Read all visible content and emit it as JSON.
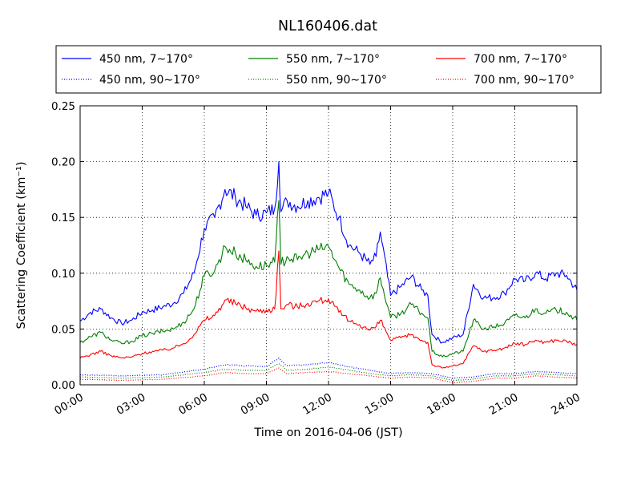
{
  "chart_data": {
    "type": "line",
    "title": "NL160406.dat",
    "xlabel": "Time on 2016-04-06 (JST)",
    "ylabel": "Scattering Coefficient (km⁻¹)",
    "xlim": [
      0,
      24
    ],
    "ylim": [
      0,
      0.25
    ],
    "grid": true,
    "x_ticks": [
      0,
      3,
      6,
      9,
      12,
      15,
      18,
      21,
      24
    ],
    "x_tick_labels": [
      "00:00",
      "03:00",
      "06:00",
      "09:00",
      "12:00",
      "15:00",
      "18:00",
      "21:00",
      "24:00"
    ],
    "y_ticks": [
      0,
      0.05,
      0.1,
      0.15,
      0.2,
      0.25
    ],
    "y_tick_labels": [
      "0.00",
      "0.05",
      "0.10",
      "0.15",
      "0.20",
      "0.25"
    ],
    "legend_position": "top, outside plot",
    "series": [
      {
        "name": "450 nm, 7∼170°",
        "color": "#0000ff",
        "style": "solid",
        "x": [
          0,
          0.5,
          1,
          1.5,
          2,
          2.5,
          3,
          3.5,
          4,
          4.5,
          5,
          5.5,
          6,
          6.5,
          7,
          7.5,
          8,
          8.5,
          9,
          9.4,
          9.6,
          9.7,
          10,
          10.5,
          11,
          11.5,
          12,
          12.5,
          13,
          13.5,
          14,
          14.3,
          14.5,
          15,
          15.5,
          16,
          16.5,
          16.8,
          17,
          17.5,
          18,
          18.5,
          19,
          19.5,
          20,
          20.5,
          21,
          21.5,
          22,
          22.5,
          23,
          23.5,
          24
        ],
        "y": [
          0.057,
          0.065,
          0.068,
          0.06,
          0.055,
          0.058,
          0.065,
          0.067,
          0.07,
          0.073,
          0.082,
          0.1,
          0.14,
          0.15,
          0.175,
          0.168,
          0.16,
          0.152,
          0.154,
          0.158,
          0.2,
          0.155,
          0.165,
          0.16,
          0.165,
          0.168,
          0.172,
          0.15,
          0.125,
          0.118,
          0.108,
          0.115,
          0.137,
          0.08,
          0.088,
          0.097,
          0.085,
          0.08,
          0.045,
          0.038,
          0.042,
          0.045,
          0.09,
          0.078,
          0.078,
          0.082,
          0.095,
          0.093,
          0.1,
          0.095,
          0.1,
          0.098,
          0.085
        ]
      },
      {
        "name": "550 nm, 7∼170°",
        "color": "#008000",
        "style": "solid",
        "x": [
          0,
          0.5,
          1,
          1.5,
          2,
          2.5,
          3,
          3.5,
          4,
          4.5,
          5,
          5.5,
          6,
          6.5,
          7,
          7.5,
          8,
          8.5,
          9,
          9.4,
          9.6,
          9.7,
          10,
          10.5,
          11,
          11.5,
          12,
          12.5,
          13,
          13.5,
          14,
          14.3,
          14.5,
          15,
          15.5,
          16,
          16.5,
          16.8,
          17,
          17.5,
          18,
          18.5,
          19,
          19.5,
          20,
          20.5,
          21,
          21.5,
          22,
          22.5,
          23,
          23.5,
          24
        ],
        "y": [
          0.038,
          0.043,
          0.047,
          0.04,
          0.037,
          0.039,
          0.044,
          0.046,
          0.048,
          0.05,
          0.056,
          0.068,
          0.098,
          0.102,
          0.124,
          0.118,
          0.112,
          0.106,
          0.107,
          0.11,
          0.165,
          0.108,
          0.115,
          0.112,
          0.118,
          0.121,
          0.124,
          0.105,
          0.09,
          0.085,
          0.078,
          0.082,
          0.096,
          0.06,
          0.064,
          0.072,
          0.064,
          0.06,
          0.03,
          0.025,
          0.028,
          0.03,
          0.058,
          0.05,
          0.052,
          0.055,
          0.062,
          0.06,
          0.068,
          0.064,
          0.067,
          0.065,
          0.058
        ]
      },
      {
        "name": "700 nm, 7∼170°",
        "color": "#ff0000",
        "style": "solid",
        "x": [
          0,
          0.5,
          1,
          1.5,
          2,
          2.5,
          3,
          3.5,
          4,
          4.5,
          5,
          5.5,
          6,
          6.5,
          7,
          7.5,
          8,
          8.5,
          9,
          9.4,
          9.6,
          9.7,
          10,
          10.5,
          11,
          11.5,
          12,
          12.5,
          13,
          13.5,
          14,
          14.3,
          14.5,
          15,
          15.5,
          16,
          16.5,
          16.8,
          17,
          17.5,
          18,
          18.5,
          19,
          19.5,
          20,
          20.5,
          21,
          21.5,
          22,
          22.5,
          23,
          23.5,
          24
        ],
        "y": [
          0.024,
          0.027,
          0.03,
          0.026,
          0.024,
          0.025,
          0.028,
          0.03,
          0.031,
          0.033,
          0.037,
          0.045,
          0.058,
          0.062,
          0.076,
          0.073,
          0.069,
          0.066,
          0.067,
          0.068,
          0.12,
          0.068,
          0.072,
          0.07,
          0.073,
          0.075,
          0.077,
          0.065,
          0.057,
          0.054,
          0.049,
          0.052,
          0.058,
          0.04,
          0.042,
          0.045,
          0.04,
          0.038,
          0.018,
          0.015,
          0.017,
          0.019,
          0.035,
          0.03,
          0.031,
          0.033,
          0.037,
          0.036,
          0.04,
          0.038,
          0.04,
          0.039,
          0.036
        ]
      },
      {
        "name": "450 nm, 90∼170°",
        "color": "#0000ff",
        "style": "dotted",
        "x": [
          0,
          2,
          4,
          6,
          7,
          8,
          9,
          9.6,
          10,
          11,
          12,
          13,
          14,
          15,
          16,
          17,
          18,
          19,
          20,
          21,
          22,
          23,
          24
        ],
        "y": [
          0.009,
          0.008,
          0.009,
          0.014,
          0.018,
          0.017,
          0.016,
          0.024,
          0.017,
          0.018,
          0.02,
          0.016,
          0.013,
          0.01,
          0.011,
          0.01,
          0.006,
          0.007,
          0.01,
          0.01,
          0.012,
          0.011,
          0.01
        ]
      },
      {
        "name": "550 nm, 90∼170°",
        "color": "#008000",
        "style": "dotted",
        "x": [
          0,
          2,
          4,
          6,
          7,
          8,
          9,
          9.6,
          10,
          11,
          12,
          13,
          14,
          15,
          16,
          17,
          18,
          19,
          20,
          21,
          22,
          23,
          24
        ],
        "y": [
          0.007,
          0.006,
          0.007,
          0.011,
          0.014,
          0.013,
          0.013,
          0.019,
          0.013,
          0.014,
          0.016,
          0.013,
          0.01,
          0.008,
          0.009,
          0.008,
          0.004,
          0.005,
          0.008,
          0.008,
          0.01,
          0.009,
          0.008
        ]
      },
      {
        "name": "700 nm, 90∼170°",
        "color": "#ff0000",
        "style": "dotted",
        "x": [
          0,
          2,
          4,
          6,
          7,
          8,
          9,
          9.6,
          10,
          11,
          12,
          13,
          14,
          15,
          16,
          17,
          18,
          19,
          20,
          21,
          22,
          23,
          24
        ],
        "y": [
          0.005,
          0.004,
          0.005,
          0.008,
          0.011,
          0.01,
          0.01,
          0.015,
          0.01,
          0.011,
          0.012,
          0.01,
          0.008,
          0.006,
          0.007,
          0.006,
          0.002,
          0.003,
          0.006,
          0.006,
          0.008,
          0.007,
          0.006
        ]
      }
    ]
  }
}
